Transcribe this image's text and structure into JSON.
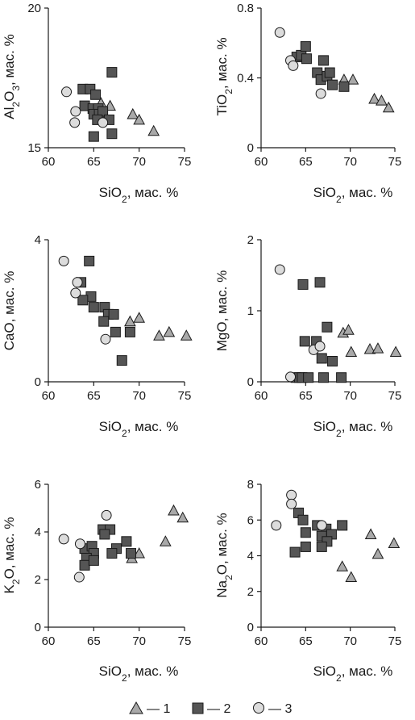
{
  "legend": [
    {
      "marker": "triangle",
      "label": "— 1"
    },
    {
      "marker": "square",
      "label": "— 2"
    },
    {
      "marker": "circle",
      "label": "— 3"
    }
  ],
  "colors": {
    "triangle_fill": "#a9a9a9",
    "square_fill": "#555555",
    "circle_fill": "#dcdcdc",
    "marker_stroke": "#1a1a1a",
    "axis": "#1a1a1a"
  },
  "chart_data": [
    {
      "type": "scatter",
      "xlabel": "SiO₂, мас. %",
      "ylabel": "Al₂O₃, мас. %",
      "xlim": [
        60,
        75
      ],
      "ylim": [
        15,
        20
      ],
      "xticks": [
        "60",
        "65",
        "70",
        "75"
      ],
      "yticks": [
        "15",
        "20"
      ],
      "series": [
        {
          "marker": "triangle",
          "points": [
            [
              65.8,
              16.6
            ],
            [
              66.8,
              16.5
            ],
            [
              69.3,
              16.2
            ],
            [
              70.0,
              16.0
            ],
            [
              71.6,
              15.6
            ]
          ]
        },
        {
          "marker": "square",
          "points": [
            [
              63.8,
              17.1
            ],
            [
              64.6,
              17.1
            ],
            [
              65.2,
              16.9
            ],
            [
              67.0,
              17.7
            ],
            [
              64.0,
              16.5
            ],
            [
              64.9,
              16.4
            ],
            [
              65.5,
              16.4
            ],
            [
              65.0,
              16.2
            ],
            [
              65.6,
              16.2
            ],
            [
              66.0,
              16.3
            ],
            [
              65.4,
              16.0
            ],
            [
              66.7,
              16.0
            ],
            [
              65.0,
              15.4
            ],
            [
              67.0,
              15.5
            ]
          ]
        },
        {
          "marker": "circle",
          "points": [
            [
              62.0,
              17.0
            ],
            [
              63.0,
              16.3
            ],
            [
              62.9,
              15.9
            ],
            [
              66.0,
              15.9
            ]
          ]
        }
      ]
    },
    {
      "type": "scatter",
      "xlabel": "SiO₂, мас. %",
      "ylabel": "TiO₂, мас. %",
      "xlim": [
        60,
        75
      ],
      "ylim": [
        0,
        0.8
      ],
      "xticks": [
        "60",
        "65",
        "70",
        "75"
      ],
      "yticks": [
        "0",
        "0.4",
        "0.8"
      ],
      "series": [
        {
          "marker": "triangle",
          "points": [
            [
              69.3,
              0.39
            ],
            [
              70.3,
              0.39
            ],
            [
              72.7,
              0.28
            ],
            [
              73.5,
              0.27
            ],
            [
              74.3,
              0.23
            ]
          ]
        },
        {
          "marker": "square",
          "points": [
            [
              64.0,
              0.52
            ],
            [
              64.5,
              0.53
            ],
            [
              65.0,
              0.58
            ],
            [
              65.1,
              0.51
            ],
            [
              66.3,
              0.43
            ],
            [
              67.0,
              0.5
            ],
            [
              66.7,
              0.39
            ],
            [
              67.4,
              0.41
            ],
            [
              67.7,
              0.43
            ],
            [
              68.0,
              0.36
            ],
            [
              69.3,
              0.35
            ]
          ]
        },
        {
          "marker": "circle",
          "points": [
            [
              62.1,
              0.66
            ],
            [
              63.3,
              0.5
            ],
            [
              63.6,
              0.47
            ],
            [
              66.7,
              0.31
            ]
          ]
        }
      ]
    },
    {
      "type": "scatter",
      "xlabel": "SiO₂, мас. %",
      "ylabel": "CaO, мас. %",
      "xlim": [
        60,
        75
      ],
      "ylim": [
        0,
        4
      ],
      "xticks": [
        "60",
        "65",
        "70",
        "75"
      ],
      "yticks": [
        "0",
        "4"
      ],
      "series": [
        {
          "marker": "triangle",
          "points": [
            [
              69.0,
              1.7
            ],
            [
              70.0,
              1.8
            ],
            [
              72.2,
              1.3
            ],
            [
              73.3,
              1.4
            ],
            [
              75.2,
              1.3
            ]
          ]
        },
        {
          "marker": "square",
          "points": [
            [
              64.5,
              3.4
            ],
            [
              63.6,
              2.8
            ],
            [
              64.7,
              2.4
            ],
            [
              63.8,
              2.3
            ],
            [
              65.0,
              2.1
            ],
            [
              66.2,
              2.1
            ],
            [
              66.6,
              1.9
            ],
            [
              67.2,
              1.9
            ],
            [
              66.1,
              1.7
            ],
            [
              67.4,
              1.4
            ],
            [
              69.0,
              1.4
            ],
            [
              68.1,
              0.6
            ]
          ]
        },
        {
          "marker": "circle",
          "points": [
            [
              61.7,
              3.4
            ],
            [
              63.2,
              2.8
            ],
            [
              63.0,
              2.5
            ],
            [
              66.3,
              1.2
            ]
          ]
        }
      ]
    },
    {
      "type": "scatter",
      "xlabel": "SiO₂, мас. %",
      "ylabel": "MgO, мас. %",
      "xlim": [
        60,
        75
      ],
      "ylim": [
        0,
        2
      ],
      "xticks": [
        "60",
        "65",
        "70",
        "75"
      ],
      "yticks": [
        "0",
        "1",
        "2"
      ],
      "series": [
        {
          "marker": "triangle",
          "points": [
            [
              69.2,
              0.69
            ],
            [
              69.8,
              0.73
            ],
            [
              70.1,
              0.42
            ],
            [
              72.2,
              0.46
            ],
            [
              73.1,
              0.47
            ],
            [
              75.1,
              0.42
            ]
          ]
        },
        {
          "marker": "square",
          "points": [
            [
              64.7,
              1.37
            ],
            [
              66.6,
              1.4
            ],
            [
              67.4,
              0.77
            ],
            [
              64.9,
              0.57
            ],
            [
              66.2,
              0.57
            ],
            [
              66.8,
              0.33
            ],
            [
              68.0,
              0.29
            ],
            [
              63.9,
              0.06
            ],
            [
              64.3,
              0.06
            ],
            [
              64.6,
              0.06
            ],
            [
              65.3,
              0.06
            ],
            [
              67.0,
              0.06
            ],
            [
              69.0,
              0.06
            ]
          ]
        },
        {
          "marker": "circle",
          "points": [
            [
              62.1,
              1.58
            ],
            [
              63.3,
              0.07
            ],
            [
              65.9,
              0.45
            ],
            [
              66.6,
              0.5
            ]
          ]
        }
      ]
    },
    {
      "type": "scatter",
      "xlabel": "SiO₂, мас. %",
      "ylabel": "K₂O, мас. %",
      "xlim": [
        60,
        75
      ],
      "ylim": [
        0,
        6
      ],
      "xticks": [
        "60",
        "65",
        "70",
        "75"
      ],
      "yticks": [
        "0",
        "2",
        "4",
        "6"
      ],
      "series": [
        {
          "marker": "triangle",
          "points": [
            [
              73.8,
              4.9
            ],
            [
              74.8,
              4.6
            ],
            [
              72.9,
              3.6
            ],
            [
              70.0,
              3.1
            ],
            [
              69.2,
              2.9
            ]
          ]
        },
        {
          "marker": "square",
          "points": [
            [
              66.0,
              4.1
            ],
            [
              66.8,
              4.1
            ],
            [
              66.2,
              3.9
            ],
            [
              64.0,
              3.3
            ],
            [
              64.8,
              3.4
            ],
            [
              65.0,
              3.1
            ],
            [
              64.2,
              2.9
            ],
            [
              64.0,
              2.6
            ],
            [
              65.0,
              2.8
            ],
            [
              67.5,
              3.3
            ],
            [
              68.6,
              3.6
            ],
            [
              67.0,
              3.1
            ],
            [
              69.1,
              3.1
            ]
          ]
        },
        {
          "marker": "circle",
          "points": [
            [
              61.7,
              3.7
            ],
            [
              63.5,
              3.5
            ],
            [
              66.4,
              4.7
            ],
            [
              63.4,
              2.1
            ]
          ]
        }
      ]
    },
    {
      "type": "scatter",
      "xlabel": "SiO₂, мас. %",
      "ylabel": "Na₂O, мас. %",
      "xlim": [
        60,
        75
      ],
      "ylim": [
        0,
        8
      ],
      "xticks": [
        "60",
        "65",
        "70",
        "75"
      ],
      "yticks": [
        "0",
        "2",
        "4",
        "6",
        "8"
      ],
      "series": [
        {
          "marker": "triangle",
          "points": [
            [
              69.1,
              3.4
            ],
            [
              70.1,
              2.8
            ],
            [
              72.3,
              5.2
            ],
            [
              73.1,
              4.1
            ],
            [
              74.9,
              4.7
            ]
          ]
        },
        {
          "marker": "square",
          "points": [
            [
              64.2,
              6.4
            ],
            [
              64.7,
              6.0
            ],
            [
              65.0,
              5.3
            ],
            [
              66.3,
              5.7
            ],
            [
              67.3,
              5.5
            ],
            [
              69.1,
              5.7
            ],
            [
              66.8,
              5.1
            ],
            [
              67.9,
              5.2
            ],
            [
              67.4,
              4.8
            ],
            [
              66.8,
              4.5
            ],
            [
              65.0,
              4.5
            ],
            [
              63.8,
              4.2
            ]
          ]
        },
        {
          "marker": "circle",
          "points": [
            [
              61.7,
              5.7
            ],
            [
              63.4,
              7.4
            ],
            [
              63.4,
              6.9
            ],
            [
              66.8,
              5.7
            ]
          ]
        }
      ]
    }
  ]
}
